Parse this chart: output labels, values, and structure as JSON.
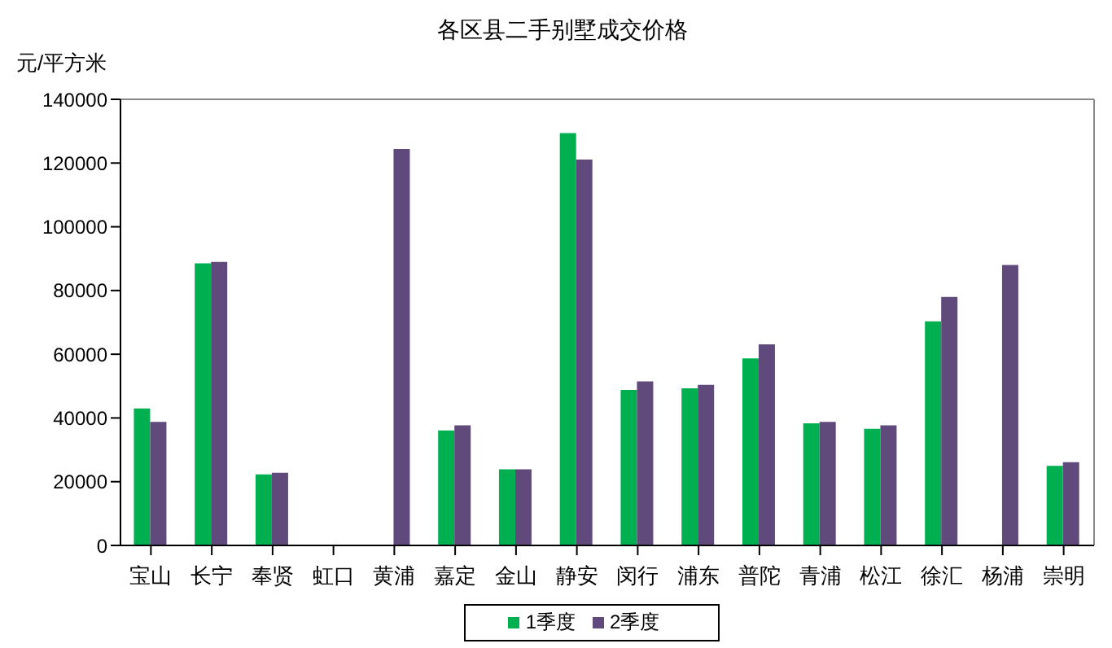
{
  "chart_data": {
    "type": "bar",
    "title": "各区县二手别墅成交价格",
    "ylabel": "元/平方米",
    "categories": [
      "宝山",
      "长宁",
      "奉贤",
      "虹口",
      "黄浦",
      "嘉定",
      "金山",
      "静安",
      "闵行",
      "浦东",
      "普陀",
      "青浦",
      "松江",
      "徐汇",
      "杨浦",
      "崇明"
    ],
    "series": [
      {
        "name": "1季度",
        "color": "#00b050",
        "values": [
          43000,
          88500,
          22300,
          null,
          null,
          36100,
          23900,
          129400,
          48800,
          49300,
          58700,
          38300,
          36600,
          70300,
          null,
          25000
        ]
      },
      {
        "name": "2季度",
        "color": "#604a7b",
        "values": [
          38800,
          89000,
          22800,
          null,
          124400,
          37700,
          23900,
          121100,
          51500,
          50400,
          63100,
          38800,
          37700,
          78000,
          88000,
          26100
        ]
      }
    ],
    "ylim": [
      0,
      140000
    ],
    "yticks": [
      0,
      20000,
      40000,
      60000,
      80000,
      100000,
      120000,
      140000
    ],
    "grid": false,
    "legend": "bottom"
  }
}
